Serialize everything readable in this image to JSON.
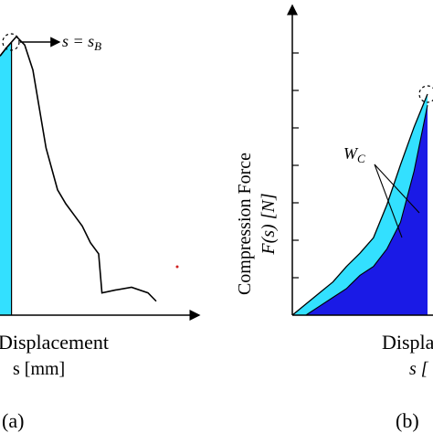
{
  "figure": {
    "panel_a_label": "(a)",
    "panel_b_label": "(b)"
  },
  "chart_data": [
    {
      "panel": "(a)",
      "type": "area",
      "xlabel_line1": "Displacement",
      "xlabel_line2": "s [mm]",
      "ylabel": "",
      "annotation": "s = s_B",
      "annotation_subscript": "B",
      "annotation_main": "s = s",
      "grid": false,
      "colors": {
        "fill": "#33e0ff",
        "line": "#000000",
        "axis": "#000000"
      },
      "curve": {
        "x": [
          0.0,
          0.04,
          0.1,
          0.15,
          0.2,
          0.28,
          0.35,
          0.4,
          0.45,
          0.5,
          0.55,
          0.6,
          0.62,
          0.7,
          0.8,
          0.9,
          0.95
        ],
        "y": [
          0.93,
          0.96,
          1.0,
          0.97,
          0.88,
          0.6,
          0.45,
          0.4,
          0.36,
          0.32,
          0.26,
          0.22,
          0.08,
          0.09,
          0.1,
          0.08,
          0.05
        ]
      },
      "shaded_x_range": [
        0.0,
        0.07
      ]
    },
    {
      "panel": "(b)",
      "type": "area",
      "ylabel_line1": "Compression Force",
      "ylabel_line2": "F(s) [N]",
      "xlabel_line1": "Displa",
      "xlabel_line2": "s [",
      "annotation": "W_C",
      "annotation_main": "W",
      "annotation_subscript": "C",
      "grid": false,
      "colors": {
        "light_fill": "#33e0ff",
        "dark_fill": "#1a1ae6",
        "line": "#000000"
      },
      "outer_curve": {
        "x": [
          0.0,
          0.1,
          0.2,
          0.3,
          0.4,
          0.5,
          0.6,
          0.7,
          0.8,
          0.9,
          1.0
        ],
        "y": [
          0.0,
          0.05,
          0.1,
          0.15,
          0.22,
          0.28,
          0.35,
          0.5,
          0.68,
          0.85,
          1.0
        ]
      },
      "inner_curve": {
        "x": [
          0.1,
          0.2,
          0.3,
          0.4,
          0.5,
          0.6,
          0.7,
          0.8,
          0.9,
          1.0
        ],
        "y": [
          0.0,
          0.04,
          0.08,
          0.12,
          0.18,
          0.22,
          0.3,
          0.42,
          0.65,
          0.95
        ]
      }
    }
  ]
}
